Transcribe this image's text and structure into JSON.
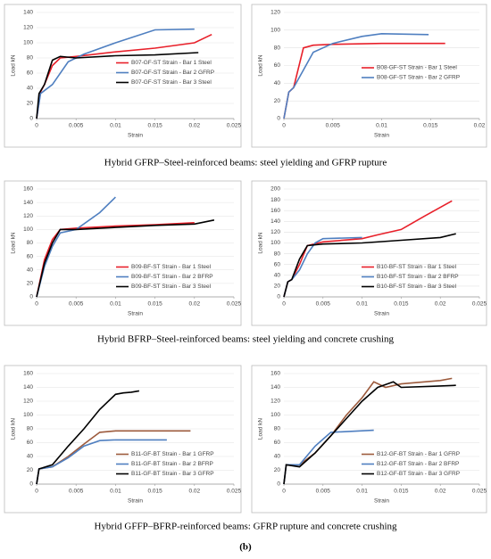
{
  "chart_data": [
    {
      "type": "line",
      "x_label": "Strain",
      "y_label": "Load kN",
      "xlim": [
        0,
        0.025
      ],
      "xticks": [
        0,
        0.005,
        0.01,
        0.015,
        0.02,
        0.025
      ],
      "ylim": [
        0,
        140
      ],
      "yticks": [
        0,
        20,
        40,
        60,
        80,
        100,
        120,
        140
      ],
      "grid": true,
      "legend_position": "right",
      "series": [
        {
          "name": "B07-GF-ST Strain - Bar 1 Steel",
          "color": "#e8202a",
          "x": [
            0,
            0.0005,
            0.001,
            0.002,
            0.003,
            0.005,
            0.01,
            0.015,
            0.02,
            0.0222
          ],
          "values": [
            0,
            35,
            45,
            70,
            80,
            82,
            88,
            93,
            100,
            111
          ]
        },
        {
          "name": "B07-GF-ST Strain - Bar 2 GFRP",
          "color": "#4f7fc0",
          "x": [
            0,
            0.0005,
            0.002,
            0.004,
            0.006,
            0.01,
            0.015,
            0.02
          ],
          "values": [
            0,
            33,
            45,
            75,
            85,
            100,
            117,
            118
          ]
        },
        {
          "name": "B07-GF-ST Strain - Bar 3 Steel",
          "color": "#000000",
          "x": [
            0,
            0.0003,
            0.001,
            0.002,
            0.003,
            0.005,
            0.01,
            0.015,
            0.0205
          ],
          "values": [
            0,
            33,
            45,
            77,
            82,
            80,
            83,
            84,
            87
          ]
        }
      ]
    },
    {
      "type": "line",
      "x_label": "Strain",
      "y_label": "Load kN",
      "xlim": [
        0,
        0.02
      ],
      "xticks": [
        0,
        0.005,
        0.01,
        0.015,
        0.02
      ],
      "ylim": [
        0,
        120
      ],
      "yticks": [
        0,
        20,
        40,
        60,
        80,
        100,
        120
      ],
      "grid": true,
      "legend_position": "right",
      "series": [
        {
          "name": "B08-GF-ST Strain - Bar 1 Steel",
          "color": "#e8202a",
          "x": [
            0,
            0.0005,
            0.001,
            0.002,
            0.003,
            0.005,
            0.01,
            0.0165
          ],
          "values": [
            0,
            30,
            35,
            80,
            83,
            84,
            85,
            85
          ]
        },
        {
          "name": "B08-GF-ST Strain - Bar 2 GFRP",
          "color": "#4f7fc0",
          "x": [
            0,
            0.0005,
            0.001,
            0.002,
            0.003,
            0.005,
            0.008,
            0.01,
            0.0148
          ],
          "values": [
            0,
            30,
            35,
            55,
            75,
            85,
            93,
            96,
            95
          ]
        }
      ]
    },
    {
      "type": "line",
      "x_label": "Strain",
      "y_label": "Load kN",
      "xlim": [
        0,
        0.025
      ],
      "xticks": [
        0,
        0.005,
        0.01,
        0.015,
        0.02,
        0.025
      ],
      "ylim": [
        0,
        160
      ],
      "yticks": [
        0,
        20,
        40,
        60,
        80,
        100,
        120,
        140,
        160
      ],
      "grid": true,
      "legend_position": "lower right",
      "series": [
        {
          "name": "B09-BF-ST Strain - Bar 1 Steel",
          "color": "#e8202a",
          "x": [
            0,
            0.001,
            0.002,
            0.003,
            0.005,
            0.01,
            0.015,
            0.02
          ],
          "values": [
            0,
            55,
            85,
            100,
            102,
            105,
            107,
            110
          ]
        },
        {
          "name": "B09-BF-ST Strain - Bar 2 BFRP",
          "color": "#4f7fc0",
          "x": [
            0,
            0.001,
            0.002,
            0.003,
            0.005,
            0.008,
            0.01
          ],
          "values": [
            0,
            45,
            75,
            95,
            100,
            125,
            148
          ]
        },
        {
          "name": "B09-BF-ST Strain - Bar 3 Steel",
          "color": "#000000",
          "x": [
            0,
            0.001,
            0.002,
            0.003,
            0.005,
            0.01,
            0.015,
            0.02,
            0.0225
          ],
          "values": [
            0,
            50,
            80,
            100,
            100,
            103,
            106,
            108,
            114
          ]
        }
      ]
    },
    {
      "type": "line",
      "x_label": "Strain",
      "y_label": "Load kN",
      "xlim": [
        0,
        0.025
      ],
      "xticks": [
        0,
        0.005,
        0.01,
        0.015,
        0.02,
        0.025
      ],
      "ylim": [
        0,
        200
      ],
      "yticks": [
        0,
        20,
        40,
        60,
        80,
        100,
        120,
        140,
        160,
        180,
        200
      ],
      "grid": true,
      "legend_position": "lower right",
      "series": [
        {
          "name": "B10-BF-ST Strain - Bar 1 Steel",
          "color": "#e8202a",
          "x": [
            0,
            0.0005,
            0.001,
            0.002,
            0.003,
            0.005,
            0.01,
            0.012,
            0.015,
            0.018,
            0.0215
          ],
          "values": [
            0,
            28,
            32,
            60,
            95,
            102,
            108,
            115,
            125,
            150,
            178
          ]
        },
        {
          "name": "B10-BF-ST Strain - Bar 2 BFRP",
          "color": "#4f7fc0",
          "x": [
            0,
            0.0005,
            0.001,
            0.002,
            0.003,
            0.004,
            0.005,
            0.01
          ],
          "values": [
            0,
            28,
            32,
            50,
            80,
            100,
            108,
            110
          ]
        },
        {
          "name": "B10-BF-ST Strain - Bar 3 Steel",
          "color": "#000000",
          "x": [
            0,
            0.0005,
            0.001,
            0.002,
            0.003,
            0.005,
            0.01,
            0.015,
            0.02,
            0.022
          ],
          "values": [
            0,
            28,
            32,
            70,
            95,
            98,
            100,
            105,
            110,
            117
          ]
        }
      ]
    },
    {
      "type": "line",
      "x_label": "Strain",
      "y_label": "Load kN",
      "xlim": [
        0,
        0.025
      ],
      "xticks": [
        0,
        0.005,
        0.01,
        0.015,
        0.02,
        0.025
      ],
      "ylim": [
        0,
        160
      ],
      "yticks": [
        0,
        20,
        40,
        60,
        80,
        100,
        120,
        140,
        160
      ],
      "grid": true,
      "legend_position": "lower right",
      "series": [
        {
          "name": "B11-GF-BT Strain - Bar 1 GFRP",
          "color": "#9c5a3c",
          "x": [
            0,
            0.0003,
            0.002,
            0.004,
            0.006,
            0.008,
            0.01,
            0.015,
            0.0195
          ],
          "values": [
            0,
            22,
            25,
            40,
            58,
            75,
            77,
            77,
            77
          ]
        },
        {
          "name": "B11-GF-BT Strain - Bar 2 BFRP",
          "color": "#4f7fc0",
          "x": [
            0,
            0.0003,
            0.002,
            0.004,
            0.006,
            0.008,
            0.01,
            0.0165
          ],
          "values": [
            0,
            22,
            25,
            38,
            55,
            63,
            64,
            64
          ]
        },
        {
          "name": "B11-GF-BT Strain - Bar 3 GFRP",
          "color": "#000000",
          "x": [
            0,
            0.0003,
            0.002,
            0.004,
            0.006,
            0.008,
            0.01,
            0.011,
            0.012,
            0.013
          ],
          "values": [
            0,
            22,
            28,
            55,
            80,
            108,
            130,
            132,
            133,
            135
          ]
        }
      ]
    },
    {
      "type": "line",
      "x_label": "Strain",
      "y_label": "Load kN",
      "xlim": [
        0,
        0.025
      ],
      "xticks": [
        0,
        0.005,
        0.01,
        0.015,
        0.02,
        0.025
      ],
      "ylim": [
        0,
        160
      ],
      "yticks": [
        0,
        20,
        40,
        60,
        80,
        100,
        120,
        140,
        160
      ],
      "grid": true,
      "legend_position": "lower right",
      "series": [
        {
          "name": "B12-GF-BT Strain - Bar 1 GFRP",
          "color": "#9c5a3c",
          "x": [
            0,
            0.0003,
            0.002,
            0.004,
            0.006,
            0.008,
            0.01,
            0.0115,
            0.013,
            0.015,
            0.02,
            0.0215
          ],
          "values": [
            0,
            28,
            28,
            45,
            70,
            100,
            125,
            148,
            140,
            145,
            150,
            153
          ]
        },
        {
          "name": "B12-GF-BT Strain - Bar 2 BFRP",
          "color": "#4f7fc0",
          "x": [
            0,
            0.0003,
            0.002,
            0.004,
            0.005,
            0.006,
            0.0115
          ],
          "values": [
            0,
            28,
            28,
            55,
            65,
            75,
            78
          ]
        },
        {
          "name": "B12-GF-BT Strain - Bar 3 GFRP",
          "color": "#000000",
          "x": [
            0,
            0.0003,
            0.002,
            0.004,
            0.006,
            0.008,
            0.01,
            0.012,
            0.014,
            0.015,
            0.02,
            0.022
          ],
          "values": [
            0,
            28,
            25,
            45,
            70,
            95,
            120,
            140,
            148,
            140,
            142,
            143
          ]
        }
      ]
    }
  ],
  "captions": [
    "Hybrid GFRP–Steel-reinforced beams: steel yielding and GFRP rupture",
    "Hybrid BFRP–Steel-reinforced beams: steel yielding and concrete crushing",
    "Hybrid GFFP–BFRP-reinforced beams: GFRP rupture and concrete crushing"
  ],
  "panel_label": "(b)"
}
